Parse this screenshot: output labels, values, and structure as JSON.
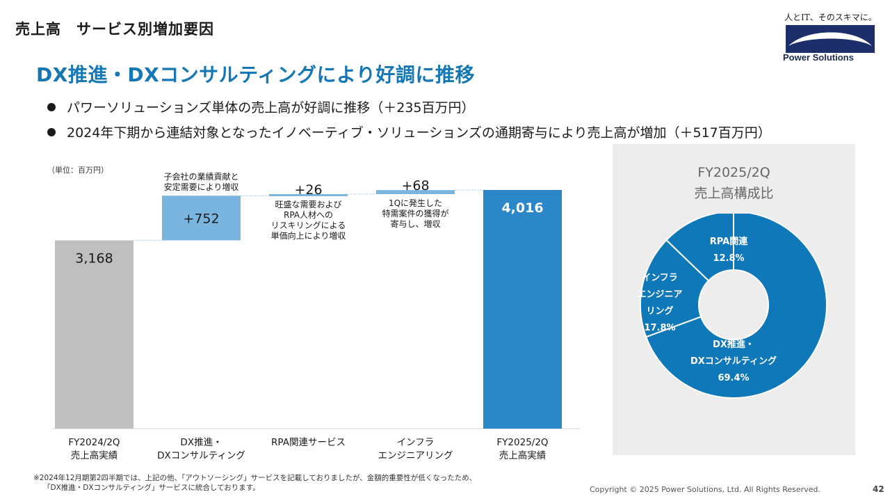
{
  "slide": {
    "heading": "売上高　サービス別増加要因",
    "headline": "DX推進・DXコンサルティングにより好調に推移",
    "bullets": [
      "パワーソリューションズ単体の売上高が好調に推移（＋235百万円）",
      "2024年下期から連結対象となったイノベーティブ・ソリューションズの通期寄与により売上高が増加（＋517百万円）"
    ],
    "unit_label": "（単位：百万円）"
  },
  "logo": {
    "tagline": "人とIT、そのスキマに。",
    "name": "Power Solutions"
  },
  "colors": {
    "total_start": "#bfbfbf",
    "increase": "#7ab5e0",
    "total_end": "#2b87c8",
    "headline": "#1577b5",
    "donut": "#0f78b9"
  },
  "chart_data": [
    {
      "type": "bar",
      "subtype": "waterfall",
      "categories": [
        [
          "FY2024/2Q",
          "売上高実績"
        ],
        [
          "DX推進・",
          "DXコンサルティング"
        ],
        [
          "RPA関連サービス"
        ],
        [
          "インフラ",
          "エンジニアリング"
        ],
        [
          "FY2025/2Q",
          "売上高実績"
        ]
      ],
      "values": [
        3168,
        752,
        26,
        68,
        4016
      ],
      "kinds": [
        "total",
        "increase",
        "increase",
        "increase",
        "total"
      ],
      "value_labels": [
        "3,168",
        "+752",
        "+26",
        "+68",
        "4,016"
      ],
      "annotations": [
        null,
        [
          "子会社の業績貢献と",
          "安定需要により増収"
        ],
        [
          "旺盛な需要および",
          "RPA人材への",
          "リスキリングによる",
          "単価向上により増収"
        ],
        [
          "1Qに発生した",
          "特需案件の獲得が",
          "寄与し、増収"
        ],
        null
      ],
      "ylim": [
        0,
        4016
      ]
    },
    {
      "type": "pie",
      "subtype": "donut",
      "title": [
        "FY2025/2Q",
        "売上高構成比"
      ],
      "slices": [
        {
          "label": [
            "DX推進・",
            "DXコンサルティング"
          ],
          "percent": "69.4%",
          "value": 69.4
        },
        {
          "label": [
            "インフラ",
            "エンジニア",
            "リング"
          ],
          "percent": "17.8%",
          "value": 17.8
        },
        {
          "label": [
            "RPA関連"
          ],
          "percent": "12.8%",
          "value": 12.8
        }
      ]
    }
  ],
  "footnote": [
    "※2024年12月期第2四半期では、上記の他、「アウトソーシング」サービスを記載しておりましたが、金額的重要性が低くなったため、",
    "「DX推進・DXコンサルティング」サービスに統合しております。"
  ],
  "copyright": "Copyright © 2025 Power Solutions, Ltd. All Rights Reserved.",
  "page_number": "42"
}
